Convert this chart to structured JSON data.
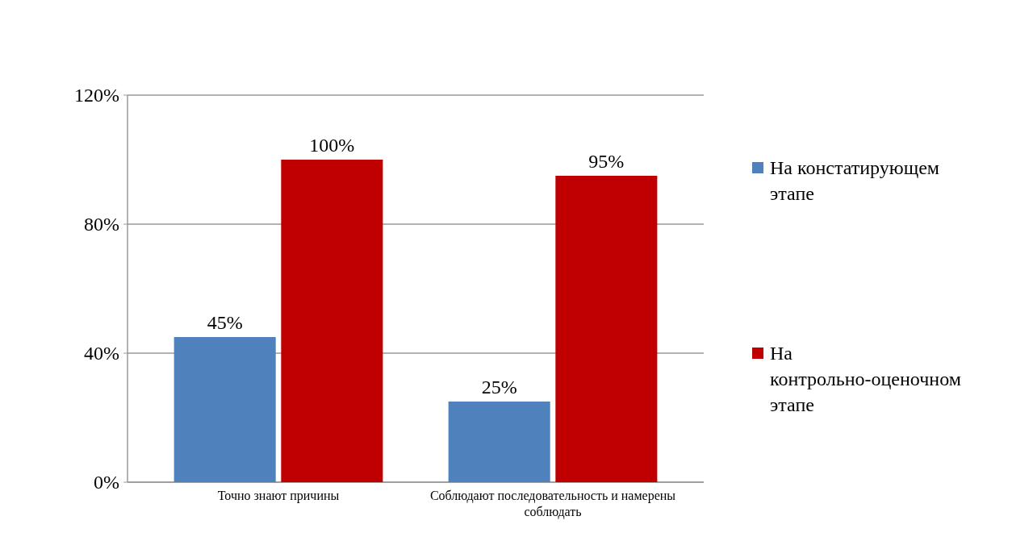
{
  "chart_data": {
    "type": "bar",
    "categories": [
      "Точно знают причины",
      "Соблюдают последовательность и намерены соблюдать"
    ],
    "series": [
      {
        "name": "На констатирующем этапе",
        "color": "#4f81bd",
        "values": [
          45,
          25
        ]
      },
      {
        "name": "На контрольно-оценочном этапе",
        "color": "#c00000",
        "values": [
          100,
          95
        ]
      }
    ],
    "ylim": [
      0,
      120
    ],
    "yticks": [
      {
        "value": 0,
        "label": "0%"
      },
      {
        "value": 40,
        "label": "40%"
      },
      {
        "value": 80,
        "label": "80%"
      },
      {
        "value": 120,
        "label": "120%"
      }
    ],
    "value_labels": [
      [
        "45%",
        "25%"
      ],
      [
        "100%",
        "95%"
      ]
    ],
    "grid": "y",
    "legend": "right"
  }
}
